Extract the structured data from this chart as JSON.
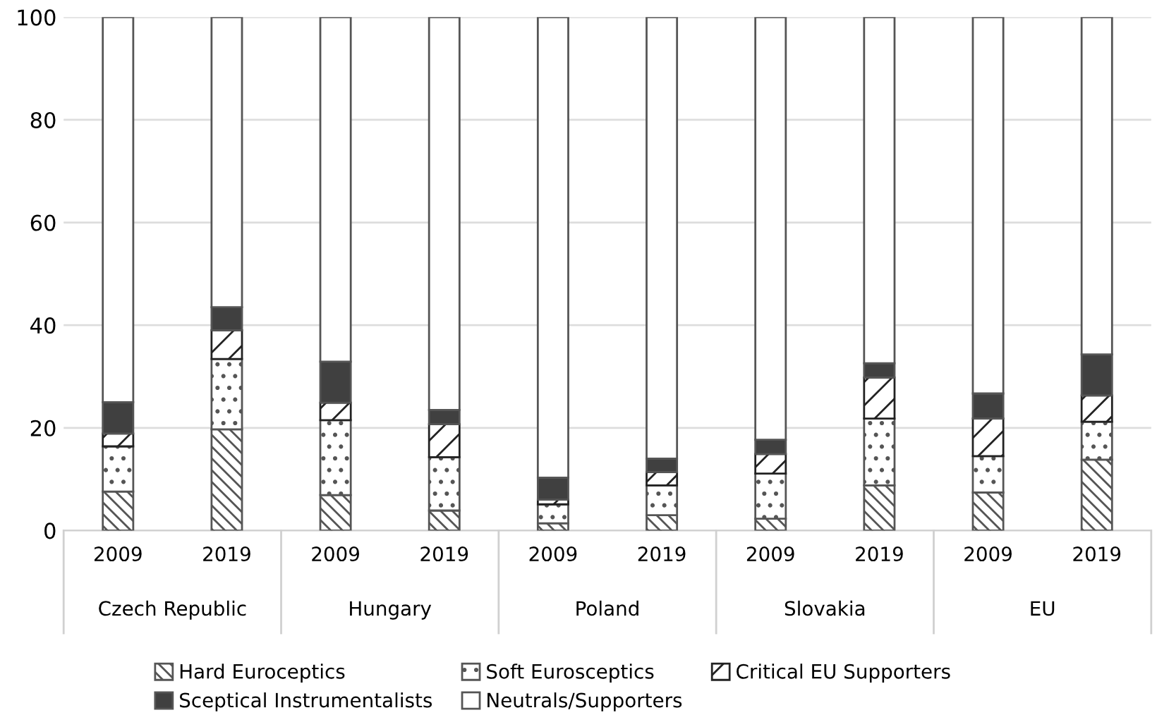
{
  "chart_data": {
    "type": "bar",
    "stacked": true,
    "categories": [
      "2009",
      "2019",
      "2009",
      "2019",
      "2009",
      "2019",
      "2009",
      "2019",
      "2009",
      "2019"
    ],
    "annotations": [
      "Czech Republic",
      "Hungary",
      "Poland",
      "Slovakia",
      "EU"
    ],
    "series": [
      {
        "name": "Hard Euroceptics",
        "color": "#555555",
        "values": [
          7.6,
          19.7,
          6.9,
          3.9,
          1.4,
          3.0,
          2.3,
          8.8,
          7.4,
          13.8
        ]
      },
      {
        "name": "Soft Eurosceptics",
        "color": "#555555",
        "values": [
          8.8,
          13.7,
          14.6,
          10.4,
          3.7,
          5.8,
          8.8,
          13.0,
          7.1,
          7.4
        ]
      },
      {
        "name": "Critical EU Supporters",
        "color": "#222222",
        "values": [
          2.5,
          5.6,
          3.4,
          6.4,
          0.9,
          2.6,
          3.8,
          8.0,
          7.3,
          5.1
        ]
      },
      {
        "name": "Sceptical Instrumentalists",
        "color": "#404040",
        "values": [
          6.1,
          4.5,
          8.0,
          2.8,
          4.3,
          2.6,
          2.8,
          2.8,
          4.9,
          8.0
        ]
      },
      {
        "name": "Neutrals/Supporters",
        "color": "#ffffff",
        "values": [
          75.0,
          56.5,
          67.1,
          76.5,
          89.7,
          86.0,
          82.3,
          67.4,
          73.3,
          65.7
        ]
      }
    ],
    "ylim": [
      0,
      100
    ],
    "yticks": [
      0,
      20,
      40,
      60,
      80,
      100
    ],
    "grid": "y",
    "legend": "bottom"
  }
}
